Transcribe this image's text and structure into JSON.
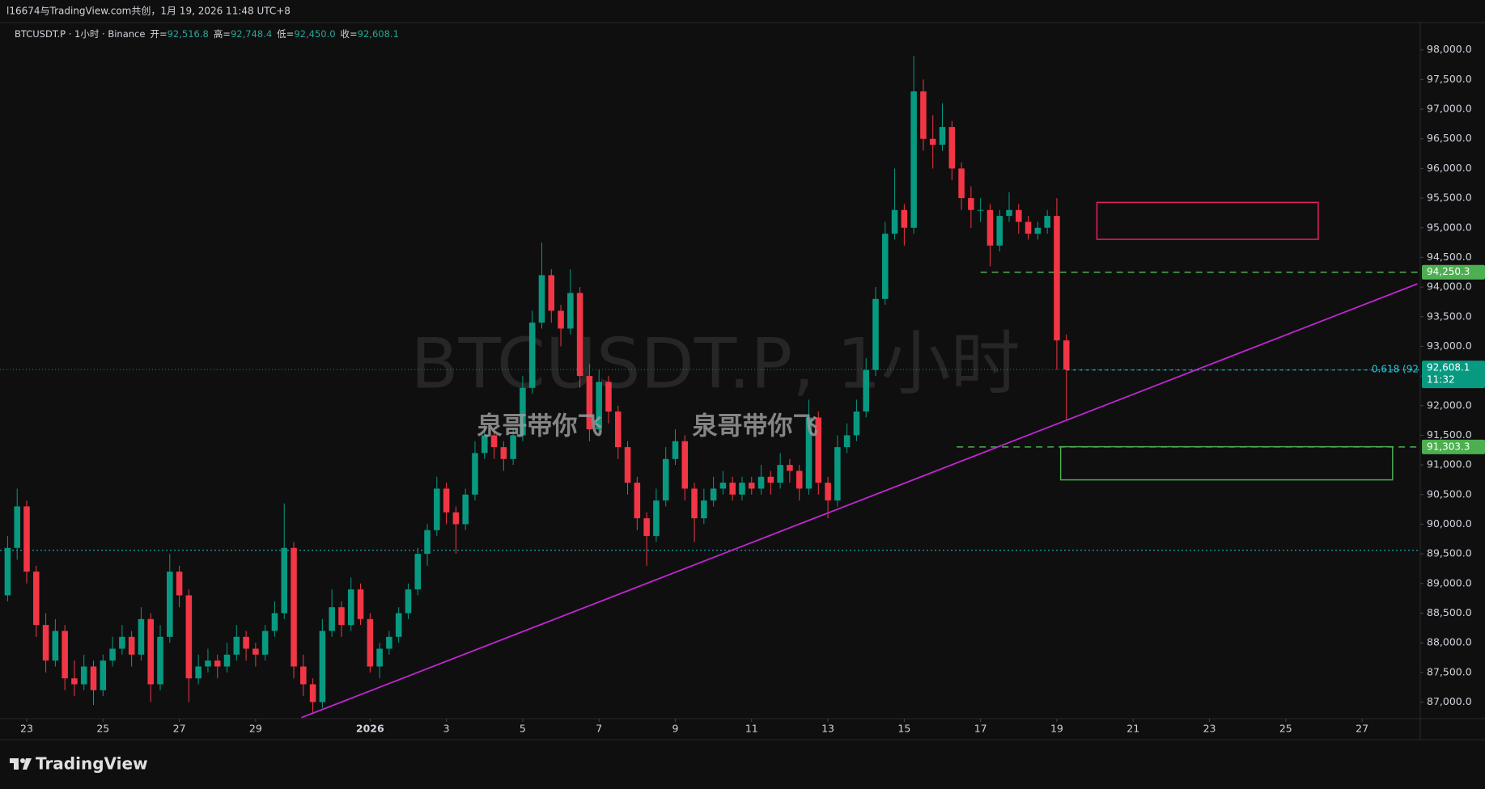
{
  "header": {
    "text": "l16674与TradingView.com共创，1月 19, 2026 11:48 UTC+8"
  },
  "overlay": [
    "泉哥带你飞",
    "泉哥带你飞"
  ],
  "logo": "TradingView",
  "chart_data": {
    "type": "candlestick",
    "watermark": "BTCUSDT.P, 1小时",
    "legend": {
      "symbol": "BTCUSDT.P · 1小时 · Binance",
      "open_label": "开=",
      "open": "92,516.8",
      "high_label": "高=",
      "high": "92,748.4",
      "low_label": "低=",
      "low": "92,450.0",
      "close_label": "收=",
      "close": "92,608.1"
    },
    "colors": {
      "up": "#089981",
      "down": "#f23645"
    },
    "ohlc": [
      [
        88800,
        89800,
        88700,
        89600
      ],
      [
        89600,
        90600,
        89400,
        90300
      ],
      [
        90300,
        90400,
        89000,
        89200
      ],
      [
        89200,
        89300,
        88100,
        88300
      ],
      [
        88300,
        88500,
        87500,
        87700
      ],
      [
        87700,
        88400,
        87600,
        88200
      ],
      [
        88200,
        88300,
        87200,
        87400
      ],
      [
        87400,
        87700,
        87100,
        87300
      ],
      [
        87300,
        87800,
        87200,
        87600
      ],
      [
        87600,
        87700,
        86950,
        87200
      ],
      [
        87200,
        87800,
        87100,
        87700
      ],
      [
        87700,
        88100,
        87600,
        87900
      ],
      [
        87900,
        88300,
        87800,
        88100
      ],
      [
        88100,
        88200,
        87600,
        87800
      ],
      [
        87800,
        88600,
        87700,
        88400
      ],
      [
        88400,
        88500,
        87000,
        87300
      ],
      [
        87300,
        88300,
        87200,
        88100
      ],
      [
        88100,
        89500,
        88000,
        89200
      ],
      [
        89200,
        89300,
        88600,
        88800
      ],
      [
        88800,
        88900,
        87000,
        87400
      ],
      [
        87400,
        87800,
        87300,
        87600
      ],
      [
        87600,
        87900,
        87500,
        87700
      ],
      [
        87700,
        87800,
        87400,
        87600
      ],
      [
        87600,
        88000,
        87500,
        87800
      ],
      [
        87800,
        88300,
        87700,
        88100
      ],
      [
        88100,
        88200,
        87700,
        87900
      ],
      [
        87900,
        88000,
        87600,
        87800
      ],
      [
        87800,
        88300,
        87700,
        88200
      ],
      [
        88200,
        88700,
        88100,
        88500
      ],
      [
        88500,
        90350,
        88400,
        89600
      ],
      [
        89600,
        89700,
        87400,
        87600
      ],
      [
        87600,
        87800,
        87100,
        87300
      ],
      [
        87300,
        87400,
        86800,
        87000
      ],
      [
        87000,
        88400,
        86900,
        88200
      ],
      [
        88200,
        88900,
        88100,
        88600
      ],
      [
        88600,
        88700,
        88100,
        88300
      ],
      [
        88300,
        89100,
        88200,
        88900
      ],
      [
        88900,
        89000,
        88300,
        88400
      ],
      [
        88400,
        88500,
        87500,
        87600
      ],
      [
        87600,
        88000,
        87400,
        87900
      ],
      [
        87900,
        88200,
        87800,
        88100
      ],
      [
        88100,
        88600,
        88000,
        88500
      ],
      [
        88500,
        89000,
        88400,
        88900
      ],
      [
        88900,
        89600,
        88800,
        89500
      ],
      [
        89500,
        90000,
        89300,
        89900
      ],
      [
        89900,
        90800,
        89800,
        90600
      ],
      [
        90600,
        90700,
        90000,
        90200
      ],
      [
        90200,
        90300,
        89500,
        90000
      ],
      [
        90000,
        90600,
        89900,
        90500
      ],
      [
        90500,
        91400,
        90400,
        91200
      ],
      [
        91200,
        91700,
        91100,
        91500
      ],
      [
        91500,
        91600,
        91100,
        91300
      ],
      [
        91300,
        91400,
        90900,
        91100
      ],
      [
        91100,
        91600,
        91000,
        91500
      ],
      [
        91500,
        92500,
        91400,
        92300
      ],
      [
        92300,
        93600,
        92200,
        93400
      ],
      [
        93400,
        94750,
        93300,
        94200
      ],
      [
        94200,
        94300,
        93400,
        93600
      ],
      [
        93600,
        93700,
        93000,
        93300
      ],
      [
        93300,
        94300,
        93200,
        93900
      ],
      [
        93900,
        94000,
        92300,
        92500
      ],
      [
        92500,
        92700,
        91400,
        91600
      ],
      [
        91600,
        92600,
        91500,
        92400
      ],
      [
        92400,
        92500,
        91700,
        91900
      ],
      [
        91900,
        92000,
        91100,
        91300
      ],
      [
        91300,
        91400,
        90500,
        90700
      ],
      [
        90700,
        90800,
        89900,
        90100
      ],
      [
        90100,
        90200,
        89300,
        89800
      ],
      [
        89800,
        90600,
        89700,
        90400
      ],
      [
        90400,
        91300,
        90300,
        91100
      ],
      [
        91100,
        91600,
        91000,
        91400
      ],
      [
        91400,
        91500,
        90400,
        90600
      ],
      [
        90600,
        90700,
        89700,
        90100
      ],
      [
        90100,
        90600,
        90000,
        90400
      ],
      [
        90400,
        90800,
        90300,
        90600
      ],
      [
        90600,
        90900,
        90500,
        90700
      ],
      [
        90700,
        90800,
        90400,
        90500
      ],
      [
        90500,
        90800,
        90400,
        90700
      ],
      [
        90700,
        90800,
        90500,
        90600
      ],
      [
        90600,
        91000,
        90500,
        90800
      ],
      [
        90800,
        90900,
        90500,
        90700
      ],
      [
        90700,
        91200,
        90600,
        91000
      ],
      [
        91000,
        91100,
        90700,
        90900
      ],
      [
        90900,
        91000,
        90400,
        90600
      ],
      [
        90600,
        92100,
        90500,
        91800
      ],
      [
        91800,
        91900,
        90500,
        90700
      ],
      [
        90700,
        90800,
        90100,
        90400
      ],
      [
        90400,
        91500,
        90300,
        91300
      ],
      [
        91300,
        91700,
        91200,
        91500
      ],
      [
        91500,
        92100,
        91400,
        91900
      ],
      [
        91900,
        92800,
        91800,
        92600
      ],
      [
        92600,
        94000,
        92500,
        93800
      ],
      [
        93800,
        95100,
        93700,
        94900
      ],
      [
        94900,
        96000,
        94800,
        95300
      ],
      [
        95300,
        95400,
        94700,
        95000
      ],
      [
        95000,
        97900,
        94900,
        97300
      ],
      [
        97300,
        97500,
        96300,
        96500
      ],
      [
        96500,
        96900,
        96000,
        96400
      ],
      [
        96400,
        97100,
        96300,
        96700
      ],
      [
        96700,
        96800,
        95800,
        96000
      ],
      [
        96000,
        96100,
        95300,
        95500
      ],
      [
        95500,
        95700,
        95000,
        95300
      ],
      [
        95300,
        95500,
        95100,
        95300
      ],
      [
        95300,
        95400,
        94350,
        94700
      ],
      [
        94700,
        95300,
        94600,
        95200
      ],
      [
        95200,
        95600,
        95100,
        95300
      ],
      [
        95300,
        95400,
        94900,
        95100
      ],
      [
        95100,
        95200,
        94800,
        94900
      ],
      [
        94900,
        95100,
        94800,
        95000
      ],
      [
        95000,
        95300,
        94900,
        95200
      ],
      [
        95200,
        95500,
        92600,
        93100
      ],
      [
        93100,
        93200,
        91750,
        92608.1
      ]
    ],
    "xlim": [
      -0.8,
      148.1
    ],
    "xticks": [
      {
        "value": 2,
        "label": "23"
      },
      {
        "value": 10,
        "label": "25"
      },
      {
        "value": 18,
        "label": "27"
      },
      {
        "value": 26,
        "label": "29"
      },
      {
        "value": 38,
        "label": "2026"
      },
      {
        "value": 46,
        "label": "3"
      },
      {
        "value": 54,
        "label": "5"
      },
      {
        "value": 62,
        "label": "7"
      },
      {
        "value": 70,
        "label": "9"
      },
      {
        "value": 78,
        "label": "11"
      },
      {
        "value": 86,
        "label": "13"
      },
      {
        "value": 94,
        "label": "15"
      },
      {
        "value": 102,
        "label": "17"
      },
      {
        "value": 110,
        "label": "19"
      },
      {
        "value": 118,
        "label": "21"
      },
      {
        "value": 126,
        "label": "23"
      },
      {
        "value": 134,
        "label": "25"
      },
      {
        "value": 142,
        "label": "27"
      }
    ],
    "ylim": [
      86720,
      98460
    ],
    "yticks": [
      {
        "value": 87000,
        "label": "87,000.0"
      },
      {
        "value": 87500,
        "label": "87,500.0"
      },
      {
        "value": 88000,
        "label": "88,000.0"
      },
      {
        "value": 88500,
        "label": "88,500.0"
      },
      {
        "value": 89000,
        "label": "89,000.0"
      },
      {
        "value": 89500,
        "label": "89,500.0"
      },
      {
        "value": 90000,
        "label": "90,000.0"
      },
      {
        "value": 90500,
        "label": "90,500.0"
      },
      {
        "value": 91000,
        "label": "91,000.0"
      },
      {
        "value": 91500,
        "label": "91,500.0"
      },
      {
        "value": 92000,
        "label": "92,000.0"
      },
      {
        "value": 92500,
        "label": "92,500.0"
      },
      {
        "value": 93000,
        "label": "93,000.0"
      },
      {
        "value": 93500,
        "label": "93,500.0"
      },
      {
        "value": 94000,
        "label": "94,000.0"
      },
      {
        "value": 94500,
        "label": "94,500.0"
      },
      {
        "value": 95000,
        "label": "95,000.0"
      },
      {
        "value": 95500,
        "label": "95,500.0"
      },
      {
        "value": 96000,
        "label": "96,000.0"
      },
      {
        "value": 96500,
        "label": "96,500.0"
      },
      {
        "value": 97000,
        "label": "97,000.0"
      },
      {
        "value": 97500,
        "label": "97,500.0"
      },
      {
        "value": 98000,
        "label": "98,000.0"
      }
    ],
    "last_price": {
      "value": 92608.1,
      "label": "92,608.1",
      "countdown": "11:32",
      "color": "#089981"
    },
    "horizontal_lines": [
      {
        "price": 94250.3,
        "label": "94,250.3",
        "start": 102,
        "color": "#4caf50",
        "style": "dashed"
      },
      {
        "price": 91303.3,
        "label": "91,303.3",
        "start": 99.5,
        "color": "#4caf50",
        "style": "dashed"
      },
      {
        "price": 89560,
        "start": -0.8,
        "color": "#26c6da",
        "style": "dotted"
      }
    ],
    "fib": {
      "price": 92600,
      "label": "0.618 (92",
      "start": 111,
      "color": "#26c6da"
    },
    "rectangles": [
      {
        "x": [
          114.2,
          137.4
        ],
        "y": [
          94805,
          95428
        ],
        "color": "#e91e63"
      },
      {
        "x": [
          110.4,
          145.2
        ],
        "y": [
          90748,
          91307
        ],
        "color": "#4caf50"
      }
    ],
    "trendline": {
      "x": [
        30.8,
        147.8
      ],
      "y": [
        86738,
        94054
      ],
      "color": "#c026d3"
    }
  }
}
